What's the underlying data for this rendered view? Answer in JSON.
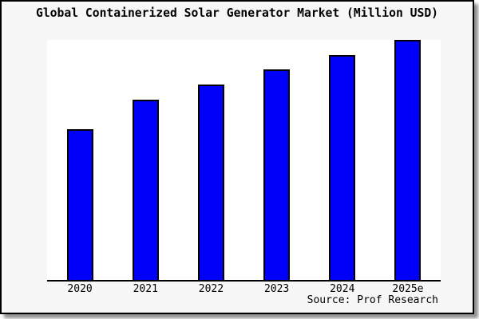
{
  "frame": {
    "background": "#f7f7f7",
    "border_color": "#000000",
    "shadow_color": "#8f8f8f"
  },
  "chart_data": {
    "type": "bar",
    "title": "Global Containerized Solar Generator Market (Million USD)",
    "categories": [
      "2020",
      "2021",
      "2022",
      "2023",
      "2024",
      "2025e"
    ],
    "values": [
      62.8,
      75.1,
      81.4,
      87.7,
      93.7,
      100
    ],
    "value_note": "Relative bar heights as % of tallest (2025e) bar; chart displays no y-axis ticks, numeric labels, or gridlines",
    "xlabel": "",
    "ylabel": "",
    "ylim": [
      0,
      100
    ],
    "y_axis_visible": false,
    "grid": false,
    "legend": null,
    "bar_fill": "#0000fa",
    "bar_edge": "#000000",
    "plot_background": "#ffffff"
  },
  "source": {
    "text": "Source: Prof Research"
  }
}
